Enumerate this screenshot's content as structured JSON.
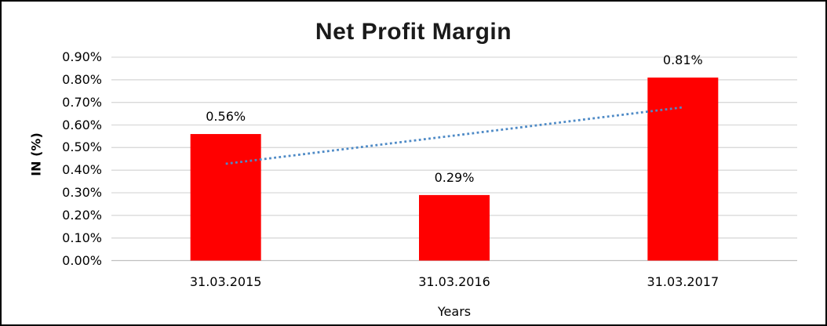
{
  "page": {
    "background": "#ffffff",
    "frame_border_color": "#000000"
  },
  "chart_data": {
    "type": "bar",
    "title": "Net Profit Margin",
    "xlabel": "Years",
    "ylabel": "IN (%)",
    "categories": [
      "31.03.2015",
      "31.03.2016",
      "31.03.2017"
    ],
    "values": [
      0.56,
      0.29,
      0.81
    ],
    "data_labels": [
      "0.56%",
      "0.29%",
      "0.81%"
    ],
    "yticks": [
      "0.00%",
      "0.10%",
      "0.20%",
      "0.30%",
      "0.40%",
      "0.50%",
      "0.60%",
      "0.70%",
      "0.80%",
      "0.90%"
    ],
    "ylim": [
      0,
      0.9
    ],
    "grid": true,
    "legend": "none",
    "bar_color": "#ff0000",
    "gridline_color": "#d9d9d9",
    "axis_line_color": "#bfbfbf",
    "trendline": {
      "type": "linear",
      "style": "dotted",
      "color": "#4e8ac6",
      "endpoints_values": [
        0.4283,
        0.6783
      ]
    }
  }
}
